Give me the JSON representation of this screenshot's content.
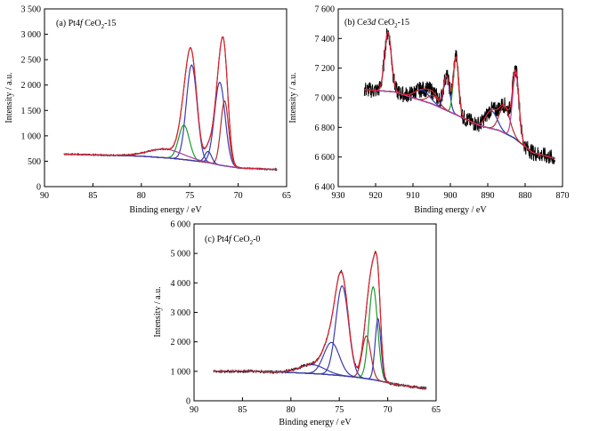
{
  "chart_data": [
    {
      "type": "line",
      "panel_label": "(a) Pt4f CeO₂-15",
      "xlabel": "Binding energy / eV",
      "ylabel": "Intensity / a.u.",
      "xlim": [
        90,
        65
      ],
      "ylim": [
        0,
        3500
      ],
      "x_ticks": [
        "90",
        "85",
        "80",
        "75",
        "70",
        "65"
      ],
      "y_ticks": [
        "0",
        "500",
        "1 000",
        "1 500",
        "2 000",
        "2 500",
        "3 000",
        "3 500"
      ],
      "background": [
        [
          88,
          640
        ],
        [
          84,
          622
        ],
        [
          80,
          600
        ],
        [
          77,
          560
        ],
        [
          75,
          520
        ],
        [
          73,
          470
        ],
        [
          71.8,
          420
        ],
        [
          70,
          370
        ],
        [
          66,
          335
        ]
      ],
      "peaks": [
        {
          "center": 74.8,
          "height": 1880,
          "width": 0.55,
          "color": "#3b3bb3"
        },
        {
          "center": 71.9,
          "height": 1630,
          "width": 0.55,
          "color": "#3b3bb3"
        },
        {
          "center": 75.6,
          "height": 680,
          "width": 0.55,
          "color": "#1f9a2e"
        },
        {
          "center": 71.4,
          "height": 1280,
          "width": 0.4,
          "color": "#b03030"
        },
        {
          "center": 73.1,
          "height": 220,
          "width": 0.35,
          "color": "#3b3bb3"
        },
        {
          "center": 77.5,
          "height": 170,
          "width": 1.8,
          "color": "#a040a0"
        }
      ]
    },
    {
      "type": "line",
      "panel_label": "(b) Ce3d CeO₂-15",
      "xlabel": "Binding energy / eV",
      "ylabel": "Intensity / a.u.",
      "xlim": [
        930,
        870
      ],
      "ylim": [
        6400,
        7600
      ],
      "x_ticks": [
        "930",
        "920",
        "910",
        "900",
        "890",
        "880",
        "870"
      ],
      "y_ticks": [
        "6 400",
        "6 600",
        "6 800",
        "7 000",
        "7 200",
        "7 400",
        "7 600"
      ],
      "background": [
        [
          923,
          7055
        ],
        [
          915,
          7040
        ],
        [
          905,
          6960
        ],
        [
          898,
          6880
        ],
        [
          892,
          6810
        ],
        [
          887,
          6780
        ],
        [
          883,
          6730
        ],
        [
          878,
          6630
        ],
        [
          872,
          6590
        ]
      ],
      "peaks": [
        {
          "center": 916.7,
          "height": 400,
          "width": 0.9,
          "color": "#2a3cb0"
        },
        {
          "center": 907.5,
          "height": 70,
          "width": 2.0,
          "color": "#2a3cb0"
        },
        {
          "center": 904.5,
          "height": 60,
          "width": 1.5,
          "color": "#b03030"
        },
        {
          "center": 901,
          "height": 230,
          "width": 0.8,
          "color": "#2a3cb0"
        },
        {
          "center": 898.5,
          "height": 390,
          "width": 0.7,
          "color": "#1f9a2e"
        },
        {
          "center": 889,
          "height": 120,
          "width": 1.5,
          "color": "#2a3cb0"
        },
        {
          "center": 885.5,
          "height": 180,
          "width": 1.4,
          "color": "#b03030"
        },
        {
          "center": 882.5,
          "height": 450,
          "width": 0.85,
          "color": "#c03c9c"
        }
      ]
    },
    {
      "type": "line",
      "panel_label": "(c) Pt4f CeO₂-0",
      "xlabel": "Binding energy / eV",
      "ylabel": "Intensity / a.u.",
      "xlim": [
        90,
        65
      ],
      "ylim": [
        0,
        6000
      ],
      "x_ticks": [
        "90",
        "85",
        "80",
        "75",
        "70",
        "65"
      ],
      "y_ticks": [
        "0",
        "1 000",
        "2 000",
        "3 000",
        "4 000",
        "5 000",
        "6 000"
      ],
      "background": [
        [
          88,
          1000
        ],
        [
          84,
          1000
        ],
        [
          80,
          960
        ],
        [
          77,
          910
        ],
        [
          75,
          860
        ],
        [
          73,
          790
        ],
        [
          71.2,
          700
        ],
        [
          69,
          540
        ],
        [
          66,
          420
        ]
      ],
      "peaks": [
        {
          "center": 74.7,
          "height": 3050,
          "width": 0.65,
          "color": "#3b3bb3"
        },
        {
          "center": 75.8,
          "height": 1100,
          "width": 0.8,
          "color": "#3b3bb3"
        },
        {
          "center": 77.8,
          "height": 300,
          "width": 1.3,
          "color": "#3b3bb3"
        },
        {
          "center": 72.2,
          "height": 1450,
          "width": 0.45,
          "color": "#b03030"
        },
        {
          "center": 71.5,
          "height": 3150,
          "width": 0.45,
          "color": "#1f9a2e"
        },
        {
          "center": 71.0,
          "height": 2100,
          "width": 0.3,
          "color": "#3b3bb3"
        }
      ]
    }
  ]
}
